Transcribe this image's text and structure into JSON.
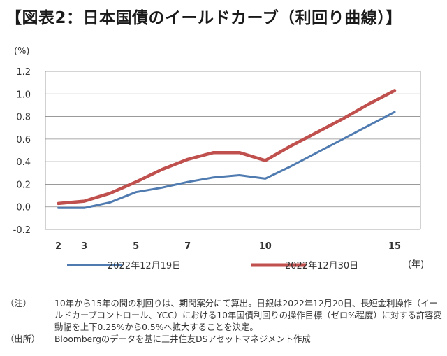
{
  "title": "【図表2：日本国債のイールドカーブ（利回り曲線）】",
  "chart_data": {
    "type": "line",
    "y_unit_label": "(%)",
    "x_unit_label": "(年)",
    "xlim": [
      1.5,
      16
    ],
    "ylim": [
      -0.2,
      1.2
    ],
    "y_ticks": [
      "1.2",
      "1.0",
      "0.8",
      "0.6",
      "0.4",
      "0.2",
      "0.0",
      "-0.2"
    ],
    "y_tick_values": [
      1.2,
      1.0,
      0.8,
      0.6,
      0.4,
      0.2,
      0.0,
      -0.2
    ],
    "x_ticks": [
      "2",
      "3",
      "5",
      "7",
      "10",
      "15"
    ],
    "x_tick_values": [
      2,
      3,
      5,
      7,
      10,
      15
    ],
    "grid": true,
    "legend_position": "bottom",
    "series": [
      {
        "name": "2022年12月19日",
        "color": "#4f7bb0",
        "x": [
          2,
          3,
          4,
          5,
          6,
          7,
          8,
          9,
          10,
          11,
          12,
          13,
          14,
          15
        ],
        "values": [
          -0.01,
          -0.01,
          0.04,
          0.13,
          0.17,
          0.22,
          0.26,
          0.28,
          0.25,
          0.36,
          0.48,
          0.6,
          0.72,
          0.84
        ]
      },
      {
        "name": "2022年12月30日",
        "color": "#c0504d",
        "x": [
          2,
          3,
          4,
          5,
          6,
          7,
          8,
          9,
          10,
          11,
          12,
          13,
          14,
          15
        ],
        "values": [
          0.03,
          0.05,
          0.12,
          0.22,
          0.33,
          0.42,
          0.48,
          0.48,
          0.41,
          0.54,
          0.66,
          0.78,
          0.91,
          1.03
        ]
      }
    ]
  },
  "notes": [
    {
      "label": "（注）",
      "text": "10年から15年の間の利回りは、期間案分にて算出。日銀は2022年12月20日、長短金利操作（イールドカーブコントロール、YCC）における10年国債利回りの操作目標（ゼロ%程度）に対する許容変動幅を上下0.25%から0.5%へ拡大することを決定。"
    },
    {
      "label": "（出所）",
      "text": "Bloombergのデータを基に三井住友DSアセットマネジメント作成"
    }
  ]
}
